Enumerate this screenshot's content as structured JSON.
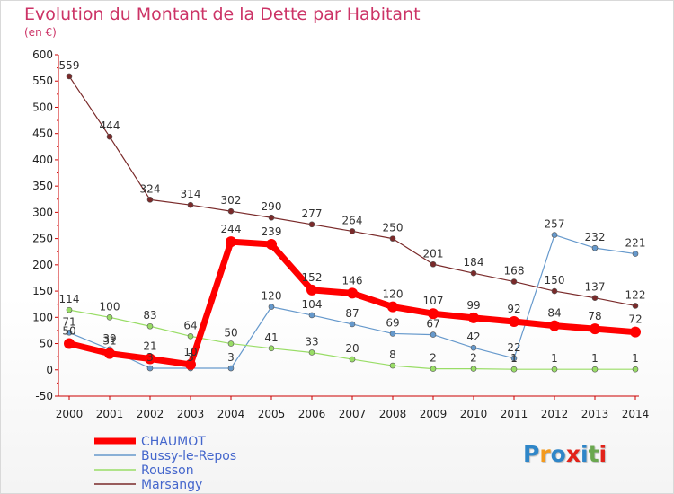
{
  "title": "Evolution du Montant de la Dette par Habitant",
  "subtitle": "(en €)",
  "logo": {
    "text": "Proxiti",
    "letter_colors": [
      "#2f86c8",
      "#f39a1e",
      "#2f86c8",
      "#e2231a",
      "#2f86c8",
      "#6aa84f",
      "#e2231a"
    ]
  },
  "chart_data": {
    "type": "line",
    "title": "Evolution du Montant de la Dette par Habitant",
    "ylabel": "(en €)",
    "xlabel": "",
    "ylim": [
      -50,
      600
    ],
    "ystep": 50,
    "grid": false,
    "legend_position": "bottom-left",
    "x": [
      "2000",
      "2001",
      "2002",
      "2003",
      "2004",
      "2005",
      "2006",
      "2007",
      "2008",
      "2009",
      "2010",
      "2011",
      "2012",
      "2013",
      "2014"
    ],
    "yticks": [
      "-50",
      "0",
      "50",
      "100",
      "150",
      "200",
      "250",
      "300",
      "350",
      "400",
      "450",
      "500",
      "550",
      "600"
    ],
    "series": [
      {
        "name": "CHAUMOT",
        "color": "#ff0000",
        "bold": true,
        "values": [
          50,
          31,
          21,
          10,
          244,
          239,
          152,
          146,
          120,
          107,
          99,
          92,
          84,
          78,
          72
        ]
      },
      {
        "name": "Bussy-le-Repos",
        "color": "#6699cc",
        "bold": false,
        "values": [
          71,
          39,
          3,
          3,
          3,
          120,
          104,
          87,
          69,
          67,
          42,
          22,
          257,
          232,
          221
        ]
      },
      {
        "name": "Rousson",
        "color": "#99dd66",
        "bold": false,
        "values": [
          114,
          100,
          83,
          64,
          50,
          41,
          33,
          20,
          8,
          2,
          2,
          1,
          1,
          1,
          1
        ]
      },
      {
        "name": "Marsangy",
        "color": "#7a2a2a",
        "bold": false,
        "values": [
          559,
          444,
          324,
          314,
          302,
          290,
          277,
          264,
          250,
          201,
          184,
          168,
          150,
          137,
          122
        ]
      }
    ]
  }
}
